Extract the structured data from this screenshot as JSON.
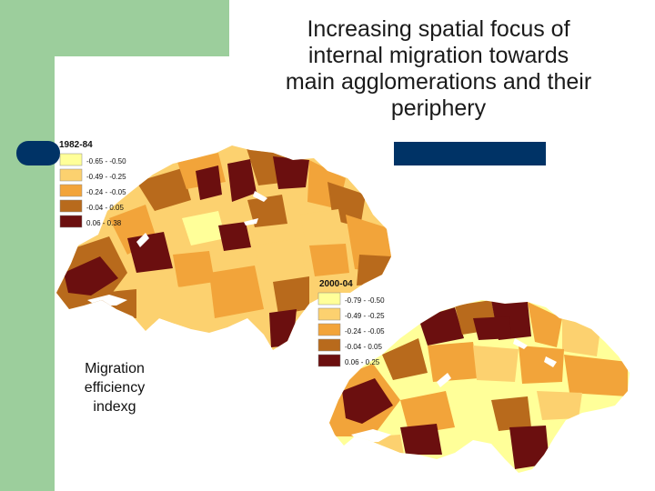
{
  "title": {
    "lines": [
      "Increasing spatial focus of",
      "internal migration towards",
      "main agglomerations and their",
      "periphery"
    ]
  },
  "caption": {
    "lines": [
      "Migration",
      "efficiency",
      "indexg"
    ]
  },
  "map_1982": {
    "legend_title": "1982-84",
    "classes": [
      {
        "label": "-0.65 - -0.50",
        "color": "#ffff99"
      },
      {
        "label": "-0.49 - -0.25",
        "color": "#fcd16f"
      },
      {
        "label": "-0.24 - -0.05",
        "color": "#f2a43a"
      },
      {
        "label": "-0.04 - 0.05",
        "color": "#b86a1c"
      },
      {
        "label": "0.06 - 0.38",
        "color": "#6b0f0f"
      }
    ]
  },
  "map_2000": {
    "legend_title": "2000-04",
    "classes": [
      {
        "label": "-0.79 - -0.50",
        "color": "#ffff99"
      },
      {
        "label": "-0.49 - -0.25",
        "color": "#fcd16f"
      },
      {
        "label": "-0.24 - -0.05",
        "color": "#f2a43a"
      },
      {
        "label": "-0.04 - 0.05",
        "color": "#b86a1c"
      },
      {
        "label": "0.06 - 0.25",
        "color": "#6b0f0f"
      }
    ]
  },
  "colors": {
    "background_green": "#9cce9c",
    "navy": "#003366",
    "lake": "#ffffff"
  }
}
